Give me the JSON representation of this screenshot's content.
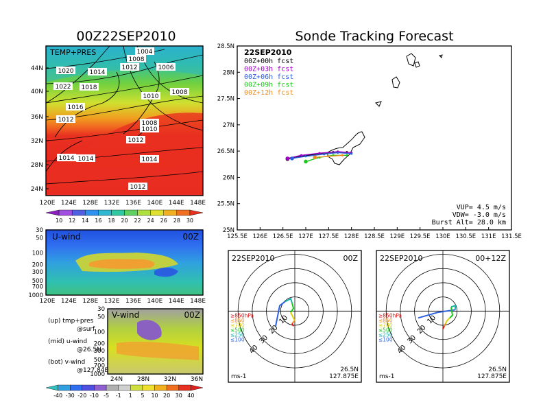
{
  "left_title": "00Z22SEP2010",
  "right_title": "Sonde Tracking Forecast",
  "map": {
    "label": "TEMP+PRES",
    "lat_ticks": [
      "44N",
      "40N",
      "36N",
      "32N",
      "28N",
      "24N"
    ],
    "lon_ticks": [
      "120E",
      "124E",
      "128E",
      "132E",
      "136E",
      "140E",
      "144E",
      "148E"
    ],
    "isobars": [
      {
        "label": "1004"
      },
      {
        "label": "1008"
      },
      {
        "label": "1006"
      },
      {
        "label": "1020"
      },
      {
        "label": "1012"
      },
      {
        "label": "1014"
      },
      {
        "label": "1022"
      },
      {
        "label": "1018"
      },
      {
        "label": "1008"
      },
      {
        "label": "1010"
      },
      {
        "label": "1016"
      },
      {
        "label": "1012"
      },
      {
        "label": "1008"
      },
      {
        "label": "1010"
      },
      {
        "label": "1012"
      },
      {
        "label": "1014"
      },
      {
        "label": "1014"
      },
      {
        "label": "1014"
      },
      {
        "label": "1012"
      }
    ],
    "colorbar": [
      "10",
      "12",
      "14",
      "16",
      "18",
      "20",
      "22",
      "24",
      "26",
      "28",
      "30"
    ]
  },
  "uwind": {
    "label": "U-wind",
    "time": "00Z",
    "p_ticks": [
      "30",
      "50",
      "100",
      "200",
      "300",
      "500",
      "700",
      "1000"
    ],
    "lon_ticks": [
      "120E",
      "124E",
      "128E",
      "132E",
      "136E",
      "140E",
      "144E",
      "148E"
    ]
  },
  "vwind": {
    "label": "V-wind",
    "time": "00Z",
    "p_ticks": [
      "30",
      "50",
      "100",
      "200",
      "300",
      "500",
      "700",
      "1000"
    ],
    "lat_ticks": [
      "24N",
      "28N",
      "32N",
      "36N"
    ],
    "colorbar": [
      "-40",
      "-30",
      "-20",
      "-10",
      "-5",
      "-1",
      "1",
      "5",
      "10",
      "20",
      "30",
      "40"
    ]
  },
  "legend_notes": [
    {
      "a": "(up) tmp+pres",
      "b": "@surf"
    },
    {
      "a": "(mid) u-wind",
      "b": "@26.5N"
    },
    {
      "a": "(bot) v-wind",
      "b": "@127.84E"
    }
  ],
  "track": {
    "date": "22SEP2010",
    "legend": [
      {
        "label": "00Z+00h fcst",
        "color": "#000000"
      },
      {
        "label": "00Z+03h fcst",
        "color": "#a000c8"
      },
      {
        "label": "00Z+06h fcst",
        "color": "#2a60e0"
      },
      {
        "label": "00Z+09h fcst",
        "color": "#18c818"
      },
      {
        "label": "00Z+12h fcst",
        "color": "#f08c20"
      }
    ],
    "lat_ticks": [
      "28.5N",
      "28N",
      "27.5N",
      "27N",
      "26.5N",
      "26N",
      "25.5N",
      "25N"
    ],
    "lon_ticks": [
      "125.5E",
      "126E",
      "126.5E",
      "127E",
      "127.5E",
      "128E",
      "128.5E",
      "129E",
      "129.5E",
      "130E",
      "130.5E",
      "131E",
      "131.5E"
    ],
    "info": [
      "VUP= 4.5 m/s",
      "VDW= -3.0 m/s",
      "Burst Alt= 28.0 km"
    ]
  },
  "chart_data": [
    {
      "type": "line",
      "title": "Sonde Tracking Forecast",
      "xlim": [
        125.5,
        131.5
      ],
      "ylim": [
        25,
        28.5
      ],
      "series": [
        {
          "name": "00Z+00h fcst",
          "x": [
            126.6,
            126.9,
            127.3,
            127.6,
            127.9
          ],
          "y": [
            26.35,
            26.4,
            26.45,
            26.48,
            26.48
          ]
        },
        {
          "name": "00Z+03h fcst",
          "x": [
            126.6,
            126.9,
            127.3,
            127.7,
            128.0
          ],
          "y": [
            26.36,
            26.42,
            26.46,
            26.49,
            26.47
          ]
        },
        {
          "name": "00Z+06h fcst",
          "x": [
            126.7,
            127.0,
            127.4,
            127.7,
            128.0
          ],
          "y": [
            26.36,
            26.4,
            26.44,
            26.47,
            26.45
          ]
        },
        {
          "name": "00Z+09h fcst",
          "x": [
            127.0,
            127.3,
            127.6,
            127.9
          ],
          "y": [
            26.3,
            26.38,
            26.42,
            26.42
          ]
        },
        {
          "name": "00Z+12h fcst",
          "x": [
            127.2,
            127.5,
            127.8
          ],
          "y": [
            26.38,
            26.4,
            26.42
          ]
        }
      ]
    }
  ],
  "hodo_left": {
    "date": "22SEP2010",
    "time": "00Z",
    "rings": [
      "10",
      "20",
      "30",
      "40"
    ],
    "levels": [
      "≥850hPa",
      "≤850",
      "≤700",
      "≤500",
      "≤250",
      "≤100"
    ],
    "unit": "ms-1",
    "loc1": "26.5N",
    "loc2": "127.875E"
  },
  "hodo_right": {
    "date": "22SEP2010",
    "time": "00+12Z",
    "rings": [
      "10",
      "20",
      "30",
      "40"
    ],
    "levels": [
      "≥850hPa",
      "≤850",
      "≤700",
      "≤500",
      "≤250",
      "≤100"
    ],
    "unit": "ms-1",
    "loc1": "26.5N",
    "loc2": "127.875E"
  },
  "colors": {
    "levels": [
      "#e01010",
      "#f08c20",
      "#e0d000",
      "#18c818",
      "#18b0b0",
      "#2a60e0"
    ]
  }
}
